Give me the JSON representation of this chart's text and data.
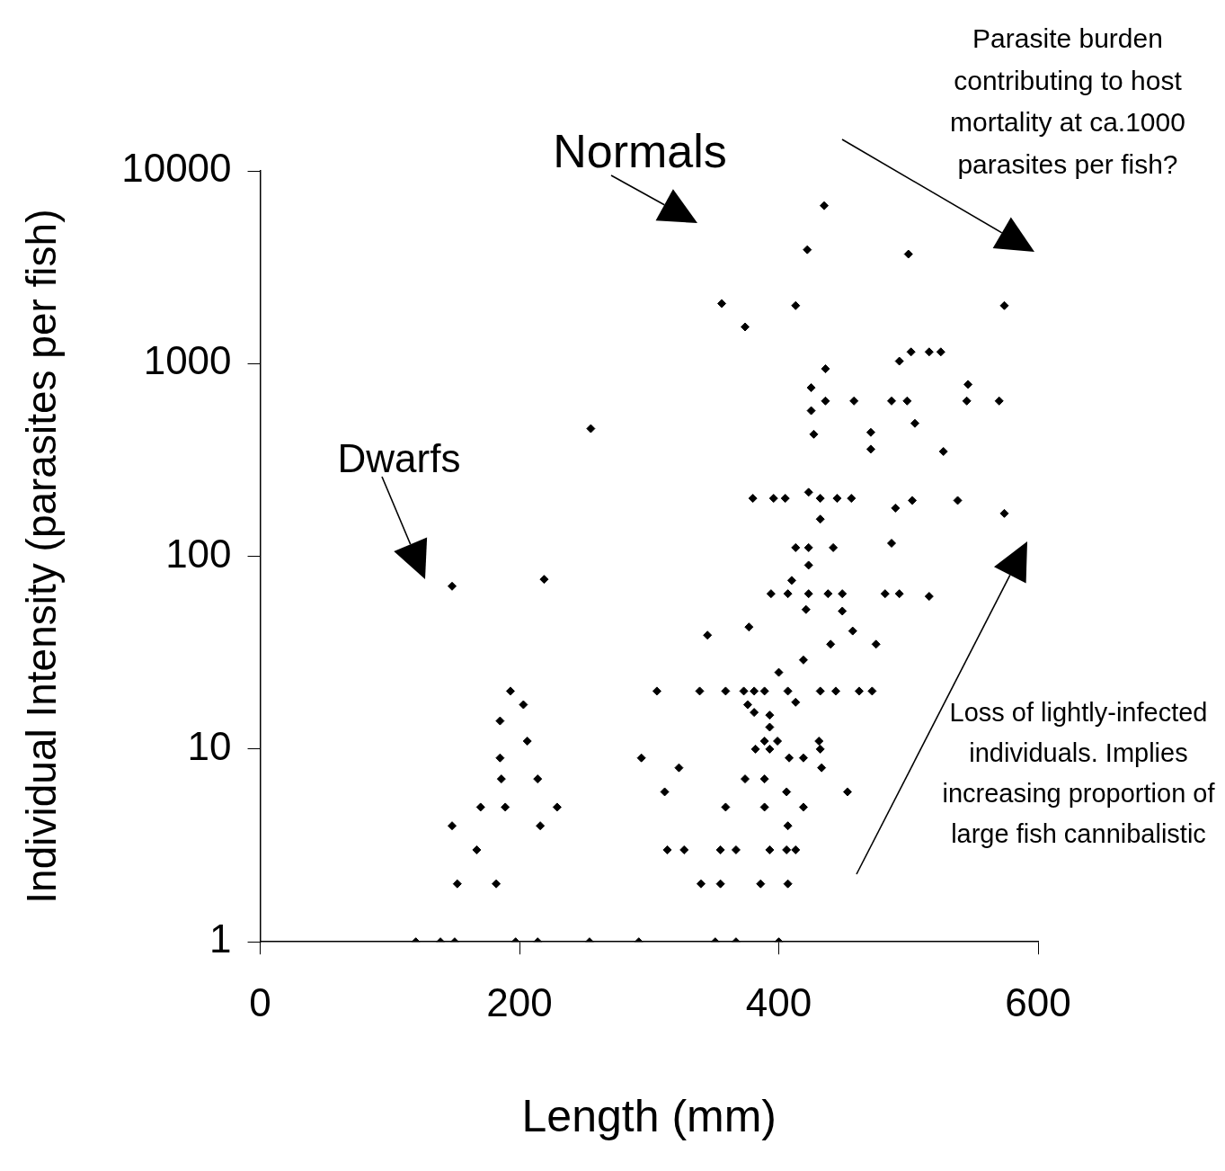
{
  "chart_data": {
    "type": "scatter",
    "xlabel": "Length (mm)",
    "ylabel": "Individual Intensity (parasites per fish)",
    "annotations": [
      "Normals",
      "Parasite burden contributing to host mortality at ca.1000 parasites per fish?",
      "Dwarfs",
      "Loss of lightly-infected individuals. Implies increasing proportion of large fish cannibalistic"
    ],
    "x": [
      120,
      139,
      150,
      197,
      214,
      254,
      292,
      351,
      367,
      400,
      152,
      182,
      167,
      148,
      216,
      170,
      189,
      229,
      186,
      214,
      185,
      206,
      185,
      203,
      193,
      148,
      219,
      432,
      487,
      413,
      423,
      442,
      423,
      410,
      394,
      407,
      423,
      438,
      449,
      482,
      493,
      516,
      421,
      449,
      377,
      345,
      457,
      440,
      475,
      419,
      400,
      306,
      339,
      359,
      373,
      381,
      389,
      407,
      432,
      444,
      462,
      472,
      376,
      413,
      381,
      393,
      393,
      389,
      399,
      431,
      382,
      393,
      432,
      294,
      408,
      419,
      323,
      433,
      374,
      389,
      312,
      406,
      453,
      359,
      389,
      419,
      407,
      314,
      327,
      355,
      367,
      393,
      406,
      413,
      340,
      355,
      386,
      407,
      435,
      422,
      500,
      413,
      574,
      374,
      356,
      255,
      502,
      516,
      525,
      493,
      436,
      425,
      546,
      436,
      458,
      487,
      499,
      545,
      570,
      425,
      505,
      427,
      471,
      471,
      527,
      380,
      396,
      405,
      432,
      445,
      456,
      423,
      490,
      503,
      538,
      574
    ],
    "values": [
      1,
      1,
      1,
      1,
      1,
      1,
      1,
      1,
      1,
      1,
      2,
      2,
      3,
      4,
      4,
      5,
      5,
      5,
      7,
      7,
      9,
      11,
      14,
      17,
      20,
      70,
      76,
      156,
      117,
      111,
      111,
      111,
      90,
      75,
      64,
      64,
      64,
      64,
      64,
      64,
      64,
      62,
      53,
      52,
      43,
      39,
      41,
      35,
      35,
      29,
      25,
      20,
      20,
      20,
      20,
      20,
      20,
      20,
      20,
      20,
      20,
      20,
      17,
      17.5,
      15.5,
      15,
      13,
      11,
      11,
      11,
      10,
      10,
      10,
      9,
      9,
      9,
      8,
      8,
      7,
      7,
      6,
      6,
      6,
      5,
      5,
      5,
      4,
      3,
      3,
      3,
      3,
      3,
      3,
      3,
      2,
      2,
      2,
      2,
      6600,
      3900,
      3700,
      2000,
      2000,
      1550,
      2050,
      460,
      1150,
      1150,
      1150,
      1030,
      940,
      750,
      780,
      640,
      640,
      640,
      640,
      640,
      640,
      570,
      490,
      430,
      440,
      360,
      350,
      200,
      200,
      200,
      200,
      200,
      200,
      215,
      178,
      195,
      195,
      167
    ],
    "color": "#000000",
    "marker": "diamond",
    "log": "y",
    "grid": false,
    "legend": false,
    "xlim": [
      0,
      600
    ],
    "xticks": [
      0,
      200,
      400,
      600
    ],
    "ylim": [
      1,
      10000
    ],
    "yticks": [
      1,
      10,
      100,
      1000,
      10000
    ]
  }
}
